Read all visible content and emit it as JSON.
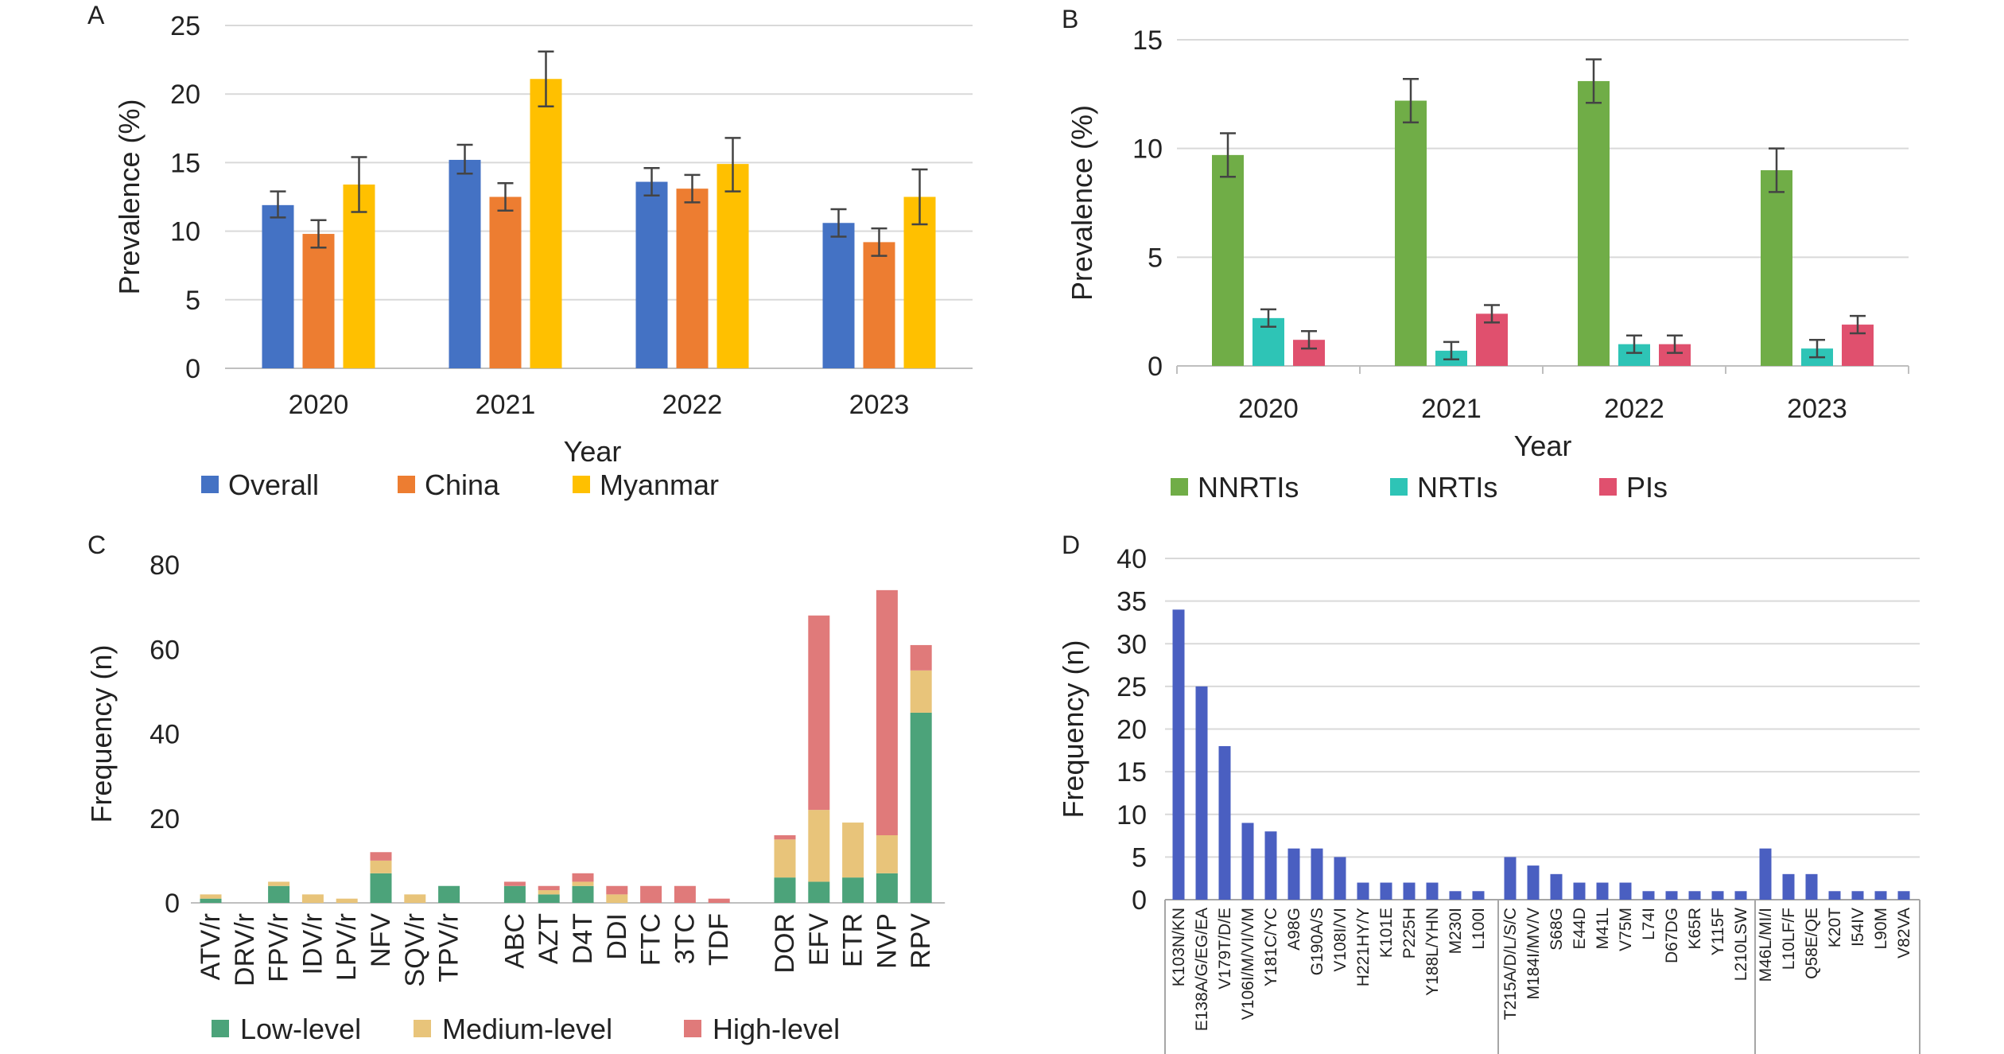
{
  "panels": [
    {
      "letter": "A",
      "chart_data": {
        "type": "bar",
        "categories": [
          "2020",
          "2021",
          "2022",
          "2023"
        ],
        "series": [
          {
            "name": "Overall",
            "color": "#4472C4",
            "values": [
              11.9,
              15.2,
              13.6,
              10.6
            ],
            "err_low": [
              11.0,
              14.2,
              12.6,
              9.6
            ],
            "err_high": [
              12.9,
              16.3,
              14.6,
              11.6
            ]
          },
          {
            "name": "China",
            "color": "#ED7D31",
            "values": [
              9.8,
              12.5,
              13.1,
              9.2
            ],
            "err_low": [
              8.8,
              11.5,
              12.1,
              8.2
            ],
            "err_high": [
              10.8,
              13.5,
              14.1,
              10.2
            ]
          },
          {
            "name": "Myanmar",
            "color": "#FFC000",
            "values": [
              13.4,
              21.1,
              14.9,
              12.5
            ],
            "err_low": [
              11.4,
              19.1,
              12.9,
              10.5
            ],
            "err_high": [
              15.4,
              23.1,
              16.8,
              14.5
            ]
          }
        ],
        "xlabel": "Year",
        "ylabel": "Prevalence (%)",
        "ylim": [
          0,
          25
        ],
        "yticks": [
          "0",
          "5",
          "10",
          "15",
          "20",
          "25"
        ],
        "grid": true,
        "legend": "bottom"
      }
    },
    {
      "letter": "B",
      "chart_data": {
        "type": "bar",
        "categories": [
          "2020",
          "2021",
          "2022",
          "2023"
        ],
        "series": [
          {
            "name": "NNRTIs",
            "color": "#70AD47",
            "values": [
              9.7,
              12.2,
              13.1,
              9.0
            ],
            "err_low": [
              8.7,
              11.2,
              12.1,
              8.0
            ],
            "err_high": [
              10.7,
              13.2,
              14.1,
              10.0
            ]
          },
          {
            "name": "NRTIs",
            "color": "#2EC4B6",
            "values": [
              2.2,
              0.7,
              1.0,
              0.8
            ],
            "err_low": [
              1.8,
              0.3,
              0.6,
              0.4
            ],
            "err_high": [
              2.6,
              1.1,
              1.4,
              1.2
            ]
          },
          {
            "name": "PIs",
            "color": "#E0506E",
            "values": [
              1.2,
              2.4,
              1.0,
              1.9
            ],
            "err_low": [
              0.8,
              2.0,
              0.6,
              1.5
            ],
            "err_high": [
              1.6,
              2.8,
              1.4,
              2.3
            ]
          }
        ],
        "xlabel": "Year",
        "ylabel": "Prevalence (%)",
        "ylim": [
          0,
          15
        ],
        "yticks": [
          "0",
          "5",
          "10",
          "15"
        ],
        "grid": true,
        "legend": "bottom"
      }
    },
    {
      "letter": "C",
      "chart_data": {
        "type": "bar",
        "stacked": true,
        "groups": [
          [
            "ATV/r",
            "DRV/r",
            "FPV/r",
            "IDV/r",
            "LPV/r",
            "NFV",
            "SQV/r",
            "TPV/r"
          ],
          [
            "ABC",
            "AZT",
            "D4T",
            "DDI",
            "FTC",
            "3TC",
            "TDF"
          ],
          [
            "DOR",
            "EFV",
            "ETR",
            "NVP",
            "RPV"
          ]
        ],
        "categories": [
          "ATV/r",
          "DRV/r",
          "FPV/r",
          "IDV/r",
          "LPV/r",
          "NFV",
          "SQV/r",
          "TPV/r",
          "ABC",
          "AZT",
          "D4T",
          "DDI",
          "FTC",
          "3TC",
          "TDF",
          "DOR",
          "EFV",
          "ETR",
          "NVP",
          "RPV"
        ],
        "series": [
          {
            "name": "Low-level",
            "color": "#4CA37A",
            "values": [
              1,
              0,
              4,
              0,
              0,
              7,
              0,
              4,
              4,
              2,
              4,
              0,
              0,
              0,
              0,
              6,
              5,
              6,
              7,
              45
            ]
          },
          {
            "name": "Medium-level",
            "color": "#E8C47A",
            "values": [
              1,
              0,
              1,
              2,
              1,
              3,
              2,
              0,
              0,
              1,
              1,
              2,
              0,
              0,
              0,
              9,
              17,
              13,
              9,
              10
            ]
          },
          {
            "name": "High-level",
            "color": "#E07A7A",
            "values": [
              0,
              0,
              0,
              0,
              0,
              2,
              0,
              0,
              1,
              1,
              2,
              2,
              4,
              4,
              1,
              1,
              46,
              0,
              58,
              6
            ]
          }
        ],
        "xlabel": "",
        "ylabel": "Frequency (n)",
        "ylim": [
          0,
          80
        ],
        "yticks": [
          "0",
          "20",
          "40",
          "60",
          "80"
        ],
        "grid": false,
        "legend": "bottom"
      }
    },
    {
      "letter": "D",
      "chart_data": {
        "type": "bar",
        "groups": [
          [
            "K103N/KN",
            "E138A/G/EG/EA",
            "V179T/D/E",
            "V106I/M/VI/VM",
            "Y181C/YC",
            "A98G",
            "G190A/S",
            "V108I/VI",
            "H221HY/Y",
            "K101E",
            "P225H",
            "Y188L/YHN",
            "M230I",
            "L100I"
          ],
          [
            "T215A/D/L/S/C",
            "M184I/MV/V",
            "S68G",
            "E44D",
            "M41L",
            "V75M",
            "L74I",
            "D67DG",
            "K65R",
            "Y115F",
            "L210LSW"
          ],
          [
            "M46L/MI/I",
            "L10LF/F",
            "Q58E/QE",
            "K20T",
            "I54IV",
            "L90M",
            "V82VA"
          ]
        ],
        "categories": [
          "K103N/KN",
          "E138A/G/EG/EA",
          "V179T/D/E",
          "V106I/M/VI/VM",
          "Y181C/YC",
          "A98G",
          "G190A/S",
          "V108I/VI",
          "H221HY/Y",
          "K101E",
          "P225H",
          "Y188L/YHN",
          "M230I",
          "L100I",
          "T215A/D/L/S/C",
          "M184I/MV/V",
          "S68G",
          "E44D",
          "M41L",
          "V75M",
          "L74I",
          "D67DG",
          "K65R",
          "Y115F",
          "L210LSW",
          "M46L/MI/I",
          "L10LF/F",
          "Q58E/QE",
          "K20T",
          "I54IV",
          "L90M",
          "V82VA"
        ],
        "values": [
          34,
          25,
          18,
          9,
          8,
          6,
          6,
          5,
          2,
          2,
          2,
          2,
          1,
          1,
          5,
          4,
          3,
          2,
          2,
          2,
          1,
          1,
          1,
          1,
          1,
          6,
          3,
          3,
          1,
          1,
          1,
          1
        ],
        "color": "#4A5FC1",
        "xlabel": "",
        "ylabel": "Frequency (n)",
        "ylim": [
          0,
          40
        ],
        "yticks": [
          "0",
          "5",
          "10",
          "15",
          "20",
          "25",
          "30",
          "35",
          "40"
        ],
        "grid": true
      }
    }
  ]
}
